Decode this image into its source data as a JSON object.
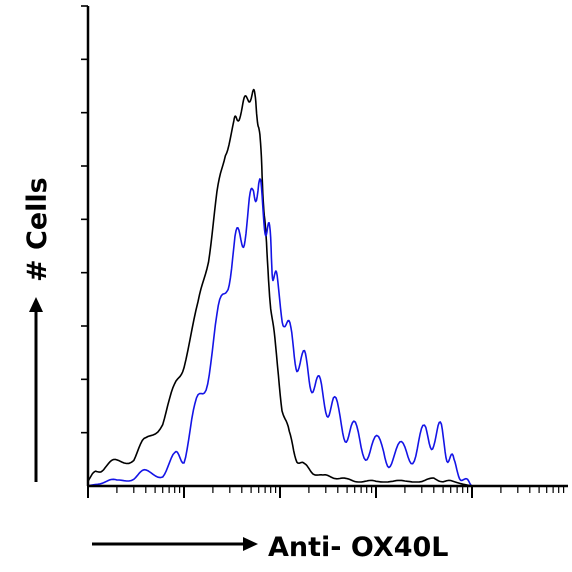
{
  "chart_data": {
    "type": "line",
    "title": "",
    "xlabel": "Anti- OX40L",
    "ylabel": "# Cells",
    "x_scale": "log",
    "xlim": [
      0.1,
      10000
    ],
    "ylim": [
      0,
      100
    ],
    "grid": false,
    "legend": "none",
    "colors": {
      "control": "#000000",
      "stained": "#1414e6",
      "axes": "#000000"
    },
    "series": [
      {
        "x": [
          0.1,
          0.12,
          0.15,
          0.2,
          0.3,
          0.4,
          0.6,
          0.8,
          1.0,
          1.4,
          1.8,
          2.2,
          2.7,
          3.3,
          3.6,
          4.1,
          4.6,
          5.2,
          5.6,
          6.0,
          6.4,
          6.8,
          7.3,
          8.0,
          9.0,
          10.5,
          12.5,
          15,
          18,
          22,
          28,
          35,
          45,
          60,
          80,
          100,
          150,
          200,
          300,
          400,
          500,
          600,
          1000
        ],
        "y": [
          1,
          3,
          4,
          5,
          6,
          9,
          14,
          20,
          26,
          37,
          48,
          60,
          70,
          75,
          77,
          79,
          81,
          82,
          80,
          75,
          68,
          58,
          48,
          38,
          28,
          17,
          10,
          6,
          4,
          3,
          2,
          2,
          1.5,
          1,
          1,
          1,
          1,
          1,
          1,
          1.5,
          1,
          1,
          0
        ]
      },
      {
        "x": [
          0.1,
          0.15,
          0.2,
          0.3,
          0.4,
          0.6,
          0.8,
          1.0,
          1.3,
          1.7,
          2.2,
          2.8,
          3.4,
          4.0,
          4.6,
          5.3,
          6.0,
          6.6,
          7.3,
          8.0,
          8.5,
          9.5,
          11,
          13,
          15,
          18,
          21,
          25,
          30,
          36,
          45,
          55,
          70,
          90,
          120,
          150,
          200,
          260,
          330,
          400,
          480,
          560,
          650,
          760,
          900,
          1000
        ],
        "y": [
          0,
          1,
          1,
          2,
          2.5,
          3,
          5,
          8,
          14,
          23,
          33,
          43,
          50,
          52,
          55,
          62,
          63,
          58,
          54,
          50,
          45,
          40,
          36,
          30,
          27,
          25,
          23,
          20,
          18,
          16,
          13,
          11,
          9,
          8,
          7,
          6,
          7,
          8,
          10,
          11,
          10,
          8,
          4,
          2,
          1,
          0
        ]
      }
    ]
  }
}
